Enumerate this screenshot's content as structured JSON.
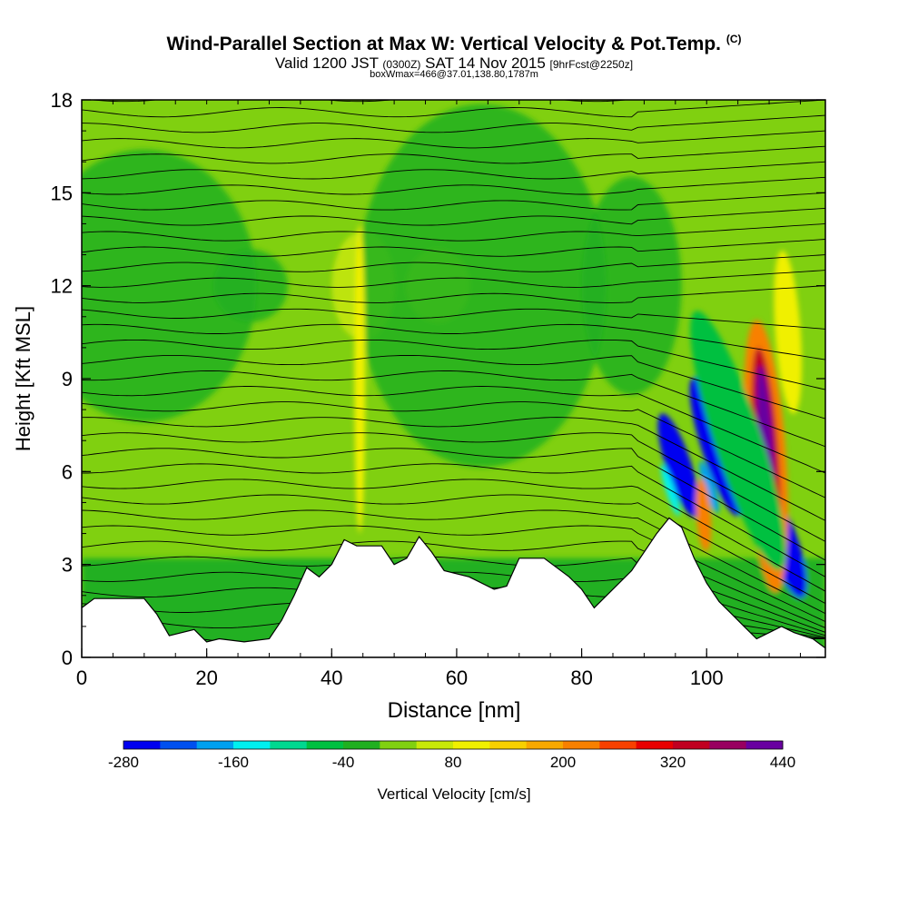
{
  "header": {
    "title": "Wind-Parallel Section at Max W: Vertical Velocity & Pot.Temp.",
    "copyright": "(C)",
    "valid_prefix": "Valid 1200 JST",
    "valid_utc": "(0300Z)",
    "valid_date": "SAT 14 Nov 2015",
    "forecast": "[9hrFcst@2250z]",
    "boxwmax": "boxWmax=466@37.01,138.80,1787m"
  },
  "chart_data": {
    "type": "heatmap",
    "xlabel": "Distance [nm]",
    "ylabel": "Height [Kft MSL]",
    "xlim": [
      0,
      119
    ],
    "ylim": [
      0,
      18
    ],
    "x_ticks": [
      "0",
      "20",
      "40",
      "60",
      "80",
      "100"
    ],
    "y_ticks": [
      "0",
      "3",
      "6",
      "9",
      "12",
      "15",
      "18"
    ],
    "colorbar": {
      "label": "Vertical Velocity [cm/s]",
      "tick_labels": [
        "-280",
        "-160",
        "-40",
        "80",
        "200",
        "320",
        "440"
      ],
      "levels": [
        -280,
        -240,
        -200,
        -160,
        -120,
        -80,
        -40,
        0,
        40,
        80,
        120,
        160,
        200,
        240,
        280,
        320,
        360,
        400,
        440
      ],
      "colors": [
        "#0000f0",
        "#0050f0",
        "#00a0f0",
        "#00f0f0",
        "#00d890",
        "#00c040",
        "#20b020",
        "#80d010",
        "#c8e808",
        "#f0f000",
        "#f8d000",
        "#f8a800",
        "#f88000",
        "#f84000",
        "#e80000",
        "#c00020",
        "#980060",
        "#6800a0"
      ]
    },
    "terrain_kft": [
      [
        0,
        1.6
      ],
      [
        2,
        1.9
      ],
      [
        10,
        1.9
      ],
      [
        12,
        1.4
      ],
      [
        14,
        0.7
      ],
      [
        18,
        0.9
      ],
      [
        20,
        0.5
      ],
      [
        22,
        0.6
      ],
      [
        26,
        0.5
      ],
      [
        30,
        0.6
      ],
      [
        32,
        1.2
      ],
      [
        34,
        2.0
      ],
      [
        36,
        2.9
      ],
      [
        38,
        2.6
      ],
      [
        40,
        3.0
      ],
      [
        42,
        3.8
      ],
      [
        44,
        3.6
      ],
      [
        48,
        3.6
      ],
      [
        50,
        3.0
      ],
      [
        52,
        3.2
      ],
      [
        54,
        3.9
      ],
      [
        56,
        3.4
      ],
      [
        58,
        2.8
      ],
      [
        62,
        2.6
      ],
      [
        66,
        2.2
      ],
      [
        68,
        2.3
      ],
      [
        70,
        3.2
      ],
      [
        74,
        3.2
      ],
      [
        78,
        2.6
      ],
      [
        80,
        2.2
      ],
      [
        82,
        1.6
      ],
      [
        84,
        2.0
      ],
      [
        88,
        2.8
      ],
      [
        92,
        4.0
      ],
      [
        94,
        4.5
      ],
      [
        96,
        4.2
      ],
      [
        98,
        3.2
      ],
      [
        100,
        2.4
      ],
      [
        102,
        1.8
      ],
      [
        104,
        1.4
      ],
      [
        106,
        1.0
      ],
      [
        108,
        0.6
      ],
      [
        110,
        0.8
      ],
      [
        112,
        1.0
      ],
      [
        114,
        0.8
      ],
      [
        117,
        0.6
      ],
      [
        119,
        0.3
      ]
    ],
    "w_features": [
      {
        "x": 95.5,
        "y": 6.2,
        "value": -280
      },
      {
        "x": 101.5,
        "y": 6.8,
        "value": -280
      },
      {
        "x": 112.5,
        "y": 3.6,
        "value": -280
      },
      {
        "x": 109.5,
        "y": 6.5,
        "value": 440
      },
      {
        "x": 44.5,
        "y": 9.0,
        "value": 80
      },
      {
        "x": 99.5,
        "y": 4.6,
        "value": 200
      }
    ]
  }
}
